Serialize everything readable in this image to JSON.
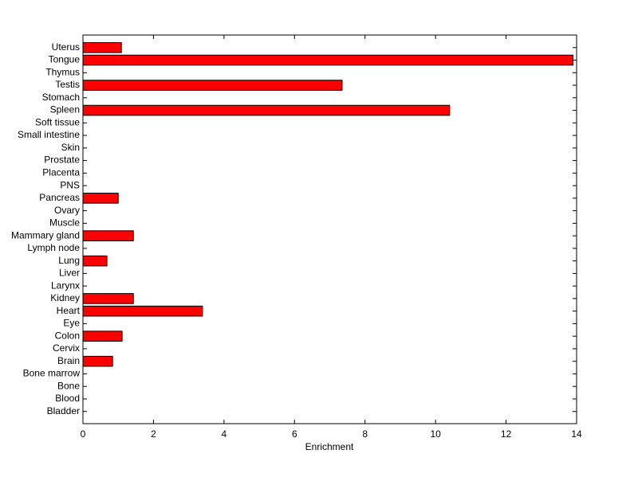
{
  "chart_data": {
    "type": "barh",
    "xlabel": "Enrichment",
    "categories": [
      "Uterus",
      "Tongue",
      "Thymus",
      "Testis",
      "Stomach",
      "Spleen",
      "Soft tissue",
      "Small intestine",
      "Skin",
      "Prostate",
      "Placenta",
      "PNS",
      "Pancreas",
      "Ovary",
      "Muscle",
      "Mammary gland",
      "Lymph node",
      "Lung",
      "Liver",
      "Larynx",
      "Kidney",
      "Heart",
      "Eye",
      "Colon",
      "Cervix",
      "Brain",
      "Bone marrow",
      "Bone",
      "Blood",
      "Bladder"
    ],
    "values": [
      1.09,
      13.9,
      0,
      7.35,
      0,
      10.4,
      0,
      0,
      0,
      0,
      0,
      0,
      1.0,
      0,
      0,
      1.43,
      0,
      0.68,
      0,
      0,
      1.43,
      3.39,
      0,
      1.11,
      0,
      0.84,
      0,
      0,
      0,
      0
    ],
    "color": "#ff0000",
    "xlim": [
      0,
      14
    ],
    "xticks": [
      0,
      2,
      4,
      6,
      8,
      10,
      12,
      14
    ]
  }
}
